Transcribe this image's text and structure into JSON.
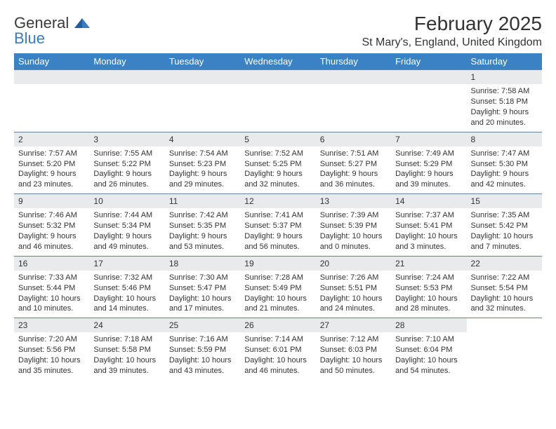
{
  "logo": {
    "word1": "General",
    "word2": "Blue"
  },
  "title": "February 2025",
  "location": "St Mary's, England, United Kingdom",
  "colors": {
    "header_bar": "#3b82c4",
    "header_text": "#ffffff",
    "daynum_bg": "#e9eaeb",
    "rule": "#6b7f99",
    "logo_blue": "#3b7bbf",
    "text": "#333333"
  },
  "weekdays": [
    "Sunday",
    "Monday",
    "Tuesday",
    "Wednesday",
    "Thursday",
    "Friday",
    "Saturday"
  ],
  "weeks": [
    [
      {
        "empty": true
      },
      {
        "empty": true
      },
      {
        "empty": true
      },
      {
        "empty": true
      },
      {
        "empty": true
      },
      {
        "empty": true
      },
      {
        "num": "1",
        "sunrise": "Sunrise: 7:58 AM",
        "sunset": "Sunset: 5:18 PM",
        "daylight": "Daylight: 9 hours and 20 minutes."
      }
    ],
    [
      {
        "num": "2",
        "sunrise": "Sunrise: 7:57 AM",
        "sunset": "Sunset: 5:20 PM",
        "daylight": "Daylight: 9 hours and 23 minutes."
      },
      {
        "num": "3",
        "sunrise": "Sunrise: 7:55 AM",
        "sunset": "Sunset: 5:22 PM",
        "daylight": "Daylight: 9 hours and 26 minutes."
      },
      {
        "num": "4",
        "sunrise": "Sunrise: 7:54 AM",
        "sunset": "Sunset: 5:23 PM",
        "daylight": "Daylight: 9 hours and 29 minutes."
      },
      {
        "num": "5",
        "sunrise": "Sunrise: 7:52 AM",
        "sunset": "Sunset: 5:25 PM",
        "daylight": "Daylight: 9 hours and 32 minutes."
      },
      {
        "num": "6",
        "sunrise": "Sunrise: 7:51 AM",
        "sunset": "Sunset: 5:27 PM",
        "daylight": "Daylight: 9 hours and 36 minutes."
      },
      {
        "num": "7",
        "sunrise": "Sunrise: 7:49 AM",
        "sunset": "Sunset: 5:29 PM",
        "daylight": "Daylight: 9 hours and 39 minutes."
      },
      {
        "num": "8",
        "sunrise": "Sunrise: 7:47 AM",
        "sunset": "Sunset: 5:30 PM",
        "daylight": "Daylight: 9 hours and 42 minutes."
      }
    ],
    [
      {
        "num": "9",
        "sunrise": "Sunrise: 7:46 AM",
        "sunset": "Sunset: 5:32 PM",
        "daylight": "Daylight: 9 hours and 46 minutes."
      },
      {
        "num": "10",
        "sunrise": "Sunrise: 7:44 AM",
        "sunset": "Sunset: 5:34 PM",
        "daylight": "Daylight: 9 hours and 49 minutes."
      },
      {
        "num": "11",
        "sunrise": "Sunrise: 7:42 AM",
        "sunset": "Sunset: 5:35 PM",
        "daylight": "Daylight: 9 hours and 53 minutes."
      },
      {
        "num": "12",
        "sunrise": "Sunrise: 7:41 AM",
        "sunset": "Sunset: 5:37 PM",
        "daylight": "Daylight: 9 hours and 56 minutes."
      },
      {
        "num": "13",
        "sunrise": "Sunrise: 7:39 AM",
        "sunset": "Sunset: 5:39 PM",
        "daylight": "Daylight: 10 hours and 0 minutes."
      },
      {
        "num": "14",
        "sunrise": "Sunrise: 7:37 AM",
        "sunset": "Sunset: 5:41 PM",
        "daylight": "Daylight: 10 hours and 3 minutes."
      },
      {
        "num": "15",
        "sunrise": "Sunrise: 7:35 AM",
        "sunset": "Sunset: 5:42 PM",
        "daylight": "Daylight: 10 hours and 7 minutes."
      }
    ],
    [
      {
        "num": "16",
        "sunrise": "Sunrise: 7:33 AM",
        "sunset": "Sunset: 5:44 PM",
        "daylight": "Daylight: 10 hours and 10 minutes."
      },
      {
        "num": "17",
        "sunrise": "Sunrise: 7:32 AM",
        "sunset": "Sunset: 5:46 PM",
        "daylight": "Daylight: 10 hours and 14 minutes."
      },
      {
        "num": "18",
        "sunrise": "Sunrise: 7:30 AM",
        "sunset": "Sunset: 5:47 PM",
        "daylight": "Daylight: 10 hours and 17 minutes."
      },
      {
        "num": "19",
        "sunrise": "Sunrise: 7:28 AM",
        "sunset": "Sunset: 5:49 PM",
        "daylight": "Daylight: 10 hours and 21 minutes."
      },
      {
        "num": "20",
        "sunrise": "Sunrise: 7:26 AM",
        "sunset": "Sunset: 5:51 PM",
        "daylight": "Daylight: 10 hours and 24 minutes."
      },
      {
        "num": "21",
        "sunrise": "Sunrise: 7:24 AM",
        "sunset": "Sunset: 5:53 PM",
        "daylight": "Daylight: 10 hours and 28 minutes."
      },
      {
        "num": "22",
        "sunrise": "Sunrise: 7:22 AM",
        "sunset": "Sunset: 5:54 PM",
        "daylight": "Daylight: 10 hours and 32 minutes."
      }
    ],
    [
      {
        "num": "23",
        "sunrise": "Sunrise: 7:20 AM",
        "sunset": "Sunset: 5:56 PM",
        "daylight": "Daylight: 10 hours and 35 minutes."
      },
      {
        "num": "24",
        "sunrise": "Sunrise: 7:18 AM",
        "sunset": "Sunset: 5:58 PM",
        "daylight": "Daylight: 10 hours and 39 minutes."
      },
      {
        "num": "25",
        "sunrise": "Sunrise: 7:16 AM",
        "sunset": "Sunset: 5:59 PM",
        "daylight": "Daylight: 10 hours and 43 minutes."
      },
      {
        "num": "26",
        "sunrise": "Sunrise: 7:14 AM",
        "sunset": "Sunset: 6:01 PM",
        "daylight": "Daylight: 10 hours and 46 minutes."
      },
      {
        "num": "27",
        "sunrise": "Sunrise: 7:12 AM",
        "sunset": "Sunset: 6:03 PM",
        "daylight": "Daylight: 10 hours and 50 minutes."
      },
      {
        "num": "28",
        "sunrise": "Sunrise: 7:10 AM",
        "sunset": "Sunset: 6:04 PM",
        "daylight": "Daylight: 10 hours and 54 minutes."
      },
      {
        "empty": true,
        "noBar": true
      }
    ]
  ]
}
